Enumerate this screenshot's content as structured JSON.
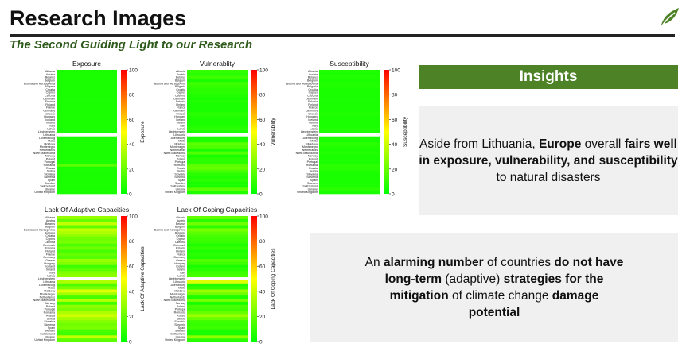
{
  "header": {
    "title": "Research Images",
    "subtitle": "The Second Guiding Light to our Research"
  },
  "logo": {
    "icon": "leaf-icon",
    "color": "#4d8227"
  },
  "colors": {
    "accent": "#4d8227",
    "high": "#ff0000",
    "low": "#00ff00",
    "row_dark": "#a85a12"
  },
  "insights": {
    "label": "Insights",
    "box1": {
      "pre": "Aside from Lithuania, ",
      "b1": "Europe",
      "mid": " overall ",
      "b2": "fairs well in exposure, vulnerability, and susceptibility",
      "post": " to natural disasters"
    },
    "box2": {
      "pre": "An ",
      "b1": "alarming number",
      "mid1": " of countries ",
      "b2": "do not have long-term",
      "mid2": " (adaptive) ",
      "b3": "strategies for the mitigation",
      "mid3": " of climate change ",
      "b4": "damage potential"
    }
  },
  "chart_data": [
    {
      "type": "heatmap",
      "title": "Exposure",
      "colorbar_label": "Exposure",
      "colorbar_ticks": [
        "100",
        "80",
        "60",
        "40",
        "20",
        "0"
      ],
      "countries": [
        "Albania",
        "Austria",
        "Belarus",
        "Belgium",
        "Bosnia and Herzegovina",
        "Bulgaria",
        "Croatia",
        "Cyprus",
        "Czechia",
        "Denmark",
        "Estonia",
        "Finland",
        "France",
        "Germany",
        "Greece",
        "Hungary",
        "Iceland",
        "Ireland",
        "Italy",
        "Latvia",
        "Liechtenstein",
        "Lithuania",
        "Luxembourg",
        "Malta",
        "Moldova",
        "Montenegro",
        "Netherlands",
        "North Macedonia",
        "Norway",
        "Poland",
        "Portugal",
        "Romania",
        "Russia",
        "Serbia",
        "Slovakia",
        "Slovenia",
        "Spain",
        "Sweden",
        "Switzerland",
        "Ukraine",
        "United Kingdom"
      ],
      "values": [
        5,
        5,
        5,
        5,
        5,
        5,
        5,
        5,
        5,
        5,
        5,
        5,
        5,
        5,
        5,
        5,
        5,
        5,
        5,
        5,
        5,
        null,
        5,
        5,
        5,
        5,
        5,
        5,
        5,
        5,
        5,
        18,
        5,
        5,
        5,
        5,
        5,
        5,
        5,
        5,
        5
      ]
    },
    {
      "type": "heatmap",
      "title": "Vulnerablity",
      "colorbar_label": "Vulnerability",
      "colorbar_ticks": [
        "100",
        "80",
        "60",
        "40",
        "20",
        "0"
      ],
      "countries": [
        "Albania",
        "Austria",
        "Belarus",
        "Belgium",
        "Bosnia and Herzegovina",
        "Bulgaria",
        "Croatia",
        "Cyprus",
        "Czechia",
        "Denmark",
        "Estonia",
        "Finland",
        "France",
        "Germany",
        "Greece",
        "Hungary",
        "Iceland",
        "Ireland",
        "Italy",
        "Latvia",
        "Liechtenstein",
        "Lithuania",
        "Luxembourg",
        "Malta",
        "Moldova",
        "Montenegro",
        "Netherlands",
        "North Macedonia",
        "Norway",
        "Poland",
        "Portugal",
        "Romania",
        "Russia",
        "Serbia",
        "Slovakia",
        "Slovenia",
        "Spain",
        "Sweden",
        "Switzerland",
        "Ukraine",
        "United Kingdom"
      ],
      "values": [
        10,
        8,
        12,
        5,
        12,
        10,
        8,
        8,
        6,
        5,
        6,
        5,
        5,
        5,
        8,
        6,
        5,
        5,
        6,
        8,
        5,
        null,
        5,
        6,
        18,
        15,
        5,
        16,
        5,
        8,
        8,
        18,
        20,
        14,
        8,
        6,
        8,
        5,
        5,
        18,
        6
      ]
    },
    {
      "type": "heatmap",
      "title": "Susceptibility",
      "colorbar_label": "Susceptibility",
      "colorbar_ticks": [
        "100",
        "80",
        "60",
        "40",
        "20",
        "0"
      ],
      "countries": [
        "Albania",
        "Austria",
        "Belarus",
        "Belgium",
        "Bosnia and Herzegovina",
        "Bulgaria",
        "Croatia",
        "Cyprus",
        "Czechia",
        "Denmark",
        "Estonia",
        "Finland",
        "France",
        "Germany",
        "Greece",
        "Hungary",
        "Iceland",
        "Ireland",
        "Italy",
        "Latvia",
        "Liechtenstein",
        "Lithuania",
        "Luxembourg",
        "Malta",
        "Moldova",
        "Montenegro",
        "Netherlands",
        "North Macedonia",
        "Norway",
        "Poland",
        "Portugal",
        "Romania",
        "Russia",
        "Serbia",
        "Slovakia",
        "Slovenia",
        "Spain",
        "Sweden",
        "Switzerland",
        "Ukraine",
        "United Kingdom"
      ],
      "values": [
        6,
        5,
        6,
        5,
        6,
        6,
        5,
        5,
        5,
        5,
        5,
        5,
        5,
        5,
        6,
        5,
        5,
        5,
        5,
        6,
        5,
        null,
        5,
        5,
        8,
        6,
        5,
        6,
        5,
        5,
        5,
        8,
        8,
        6,
        5,
        5,
        5,
        5,
        5,
        8,
        5
      ]
    },
    {
      "type": "heatmap",
      "title": "Lack Of Adaptive Capacities",
      "colorbar_label": "Lack Of Adaptive Capacities",
      "colorbar_ticks": [
        "100",
        "80",
        "60",
        "40",
        "20",
        "0"
      ],
      "countries": [
        "Albania",
        "Austria",
        "Belarus",
        "Belgium",
        "Bosnia and Herzegovina",
        "Bulgaria",
        "Croatia",
        "Cyprus",
        "Czechia",
        "Denmark",
        "Estonia",
        "Finland",
        "France",
        "Germany",
        "Greece",
        "Hungary",
        "Iceland",
        "Ireland",
        "Italy",
        "Latvia",
        "Liechtenstein",
        "Lithuania",
        "Luxembourg",
        "Malta",
        "Moldova",
        "Montenegro",
        "Netherlands",
        "North Macedonia",
        "Norway",
        "Poland",
        "Portugal",
        "Romania",
        "Russia",
        "Serbia",
        "Slovakia",
        "Slovenia",
        "Spain",
        "Sweden",
        "Switzerland",
        "Ukraine",
        "United Kingdom"
      ],
      "values": [
        30,
        20,
        38,
        18,
        38,
        34,
        28,
        22,
        24,
        15,
        22,
        14,
        20,
        16,
        30,
        26,
        12,
        18,
        25,
        28,
        null,
        34,
        15,
        24,
        44,
        32,
        14,
        36,
        13,
        28,
        24,
        34,
        40,
        32,
        26,
        22,
        24,
        14,
        12,
        38,
        18
      ]
    },
    {
      "type": "heatmap",
      "title": "Lack Of Coping Capacities",
      "colorbar_label": "Lack Of Coping Capacities",
      "colorbar_ticks": [
        "100",
        "80",
        "60",
        "40",
        "20",
        "0"
      ],
      "countries": [
        "Albania",
        "Austria",
        "Belarus",
        "Belgium",
        "Bosnia and Herzegovina",
        "Bulgaria",
        "Croatia",
        "Cyprus",
        "Czechia",
        "Denmark",
        "Estonia",
        "Finland",
        "France",
        "Germany",
        "Greece",
        "Hungary",
        "Iceland",
        "Ireland",
        "Italy",
        "Latvia",
        "Liechtenstein",
        "Lithuania",
        "Luxembourg",
        "Malta",
        "Moldova",
        "Montenegro",
        "Netherlands",
        "North Macedonia",
        "Norway",
        "Poland",
        "Portugal",
        "Romania",
        "Russia",
        "Serbia",
        "Slovakia",
        "Slovenia",
        "Spain",
        "Sweden",
        "Switzerland",
        "Ukraine",
        "United Kingdom"
      ],
      "values": [
        20,
        8,
        22,
        8,
        24,
        18,
        14,
        12,
        10,
        6,
        10,
        6,
        8,
        6,
        16,
        12,
        5,
        8,
        12,
        14,
        null,
        44,
        6,
        10,
        30,
        22,
        6,
        24,
        5,
        14,
        12,
        20,
        30,
        20,
        12,
        10,
        12,
        5,
        5,
        28,
        8
      ]
    }
  ]
}
